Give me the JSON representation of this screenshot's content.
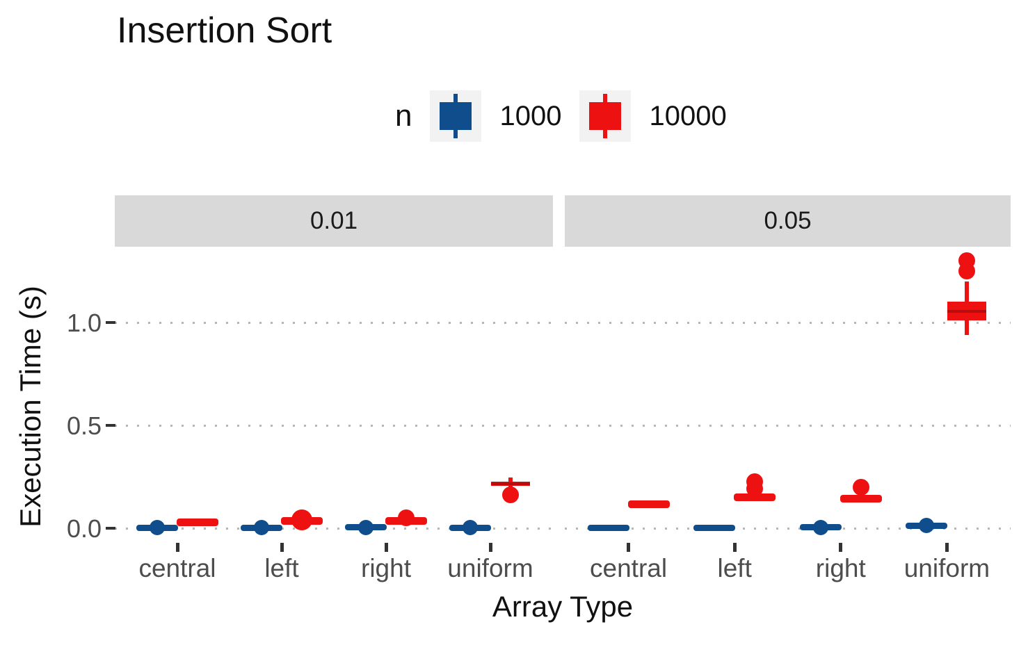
{
  "chart_data": {
    "type": "boxplot",
    "title": "Insertion Sort",
    "xlabel": "Array Type",
    "ylabel": "Execution Time (s)",
    "legend": {
      "title": "n",
      "position": "top",
      "entries": [
        {
          "label": "1000",
          "color": "#0F4D8D"
        },
        {
          "label": "10000",
          "color": "#EE1111"
        }
      ]
    },
    "grid": "dotted major y only",
    "y_ticks": [
      "0.0",
      "0.5",
      "1.0"
    ],
    "y_tick_values": [
      0.0,
      0.5,
      1.0
    ],
    "ylim": [
      -0.07,
      1.37
    ],
    "categories": [
      "central",
      "left",
      "right",
      "uniform"
    ],
    "facets": [
      {
        "label": "0.01",
        "groups": [
          {
            "category": "central",
            "boxes": [
              {
                "series": "1000",
                "shape": "flat",
                "median": 0.002,
                "dots": [
                  {
                    "v": 0.002,
                    "d": 22
                  }
                ]
              },
              {
                "series": "10000",
                "shape": "flat",
                "median": 0.028,
                "dots": []
              }
            ]
          },
          {
            "category": "left",
            "boxes": [
              {
                "series": "1000",
                "shape": "flat",
                "median": 0.002,
                "dots": [
                  {
                    "v": 0.002,
                    "d": 22
                  }
                ]
              },
              {
                "series": "10000",
                "shape": "flat",
                "median": 0.034,
                "dots": [
                  {
                    "v": 0.042,
                    "d": 30
                  }
                ]
              }
            ]
          },
          {
            "category": "right",
            "boxes": [
              {
                "series": "1000",
                "shape": "flat",
                "median": 0.005,
                "dots": [
                  {
                    "v": 0.005,
                    "d": 22
                  }
                ]
              },
              {
                "series": "10000",
                "shape": "flat",
                "median": 0.034,
                "dots": [
                  {
                    "v": 0.052,
                    "d": 24
                  }
                ]
              }
            ]
          },
          {
            "category": "uniform",
            "boxes": [
              {
                "series": "1000",
                "shape": "flat",
                "median": 0.003,
                "dots": [
                  {
                    "v": 0.003,
                    "d": 22
                  }
                ]
              },
              {
                "series": "10000",
                "shape": "box",
                "median": 0.215,
                "q1": 0.205,
                "q3": 0.227,
                "whisker_low": 0.19,
                "whisker_high": 0.248,
                "dots": [
                  {
                    "v": 0.163,
                    "d": 24
                  }
                ]
              }
            ]
          }
        ]
      },
      {
        "label": "0.05",
        "groups": [
          {
            "category": "central",
            "boxes": [
              {
                "series": "1000",
                "shape": "flat",
                "median": 0.003,
                "dots": []
              },
              {
                "series": "10000",
                "shape": "flat",
                "median": 0.115,
                "dots": []
              }
            ]
          },
          {
            "category": "left",
            "boxes": [
              {
                "series": "1000",
                "shape": "flat",
                "median": 0.003,
                "dots": []
              },
              {
                "series": "10000",
                "shape": "flat",
                "median": 0.152,
                "dots": [
                  {
                    "v": 0.192,
                    "d": 24
                  },
                  {
                    "v": 0.225,
                    "d": 24
                  }
                ]
              }
            ]
          },
          {
            "category": "right",
            "boxes": [
              {
                "series": "1000",
                "shape": "flat",
                "median": 0.005,
                "dots": [
                  {
                    "v": 0.005,
                    "d": 22
                  }
                ]
              },
              {
                "series": "10000",
                "shape": "flat",
                "median": 0.143,
                "dots": [
                  {
                    "v": 0.198,
                    "d": 24
                  }
                ]
              }
            ]
          },
          {
            "category": "uniform",
            "boxes": [
              {
                "series": "1000",
                "shape": "flat",
                "median": 0.013,
                "dots": [
                  {
                    "v": 0.013,
                    "d": 22
                  }
                ]
              },
              {
                "series": "10000",
                "shape": "box",
                "median": 1.055,
                "q1": 1.01,
                "q3": 1.1,
                "whisker_low": 0.94,
                "whisker_high": 1.2,
                "dots": [
                  {
                    "v": 1.25,
                    "d": 24
                  },
                  {
                    "v": 1.3,
                    "d": 24
                  }
                ]
              }
            ]
          }
        ]
      }
    ]
  }
}
